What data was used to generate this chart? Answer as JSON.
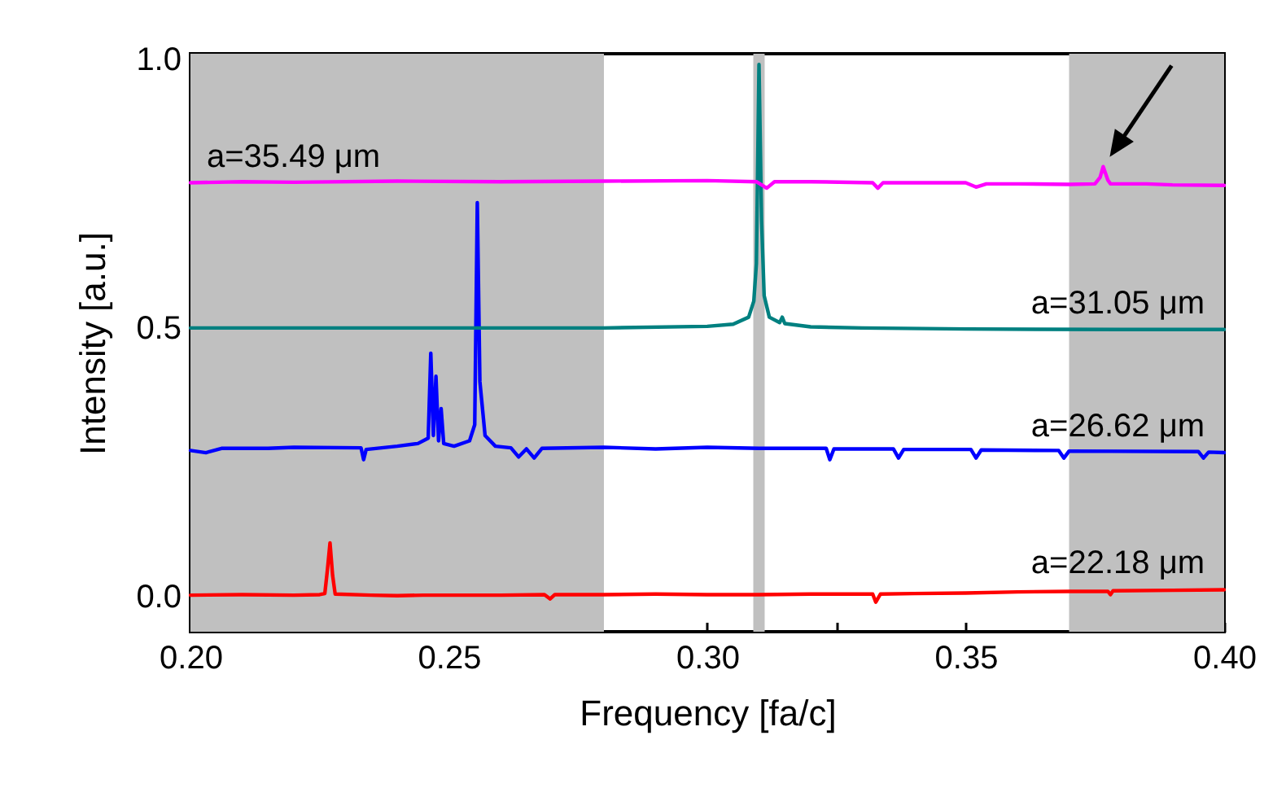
{
  "chart_data": {
    "type": "line",
    "xlabel": "Frequency [fa/c]",
    "ylabel": "Intensity [a.u.]",
    "xlim": [
      0.2,
      0.4
    ],
    "ylim": [
      -0.065,
      1.01
    ],
    "xticks": [
      {
        "value": 0.2,
        "label": "0.20"
      },
      {
        "value": 0.225,
        "label": null
      },
      0.25,
      {
        "value": 0.275,
        "label": null
      },
      {
        "value": 0.3,
        "label": "0.30"
      },
      {
        "value": 0.325,
        "label": null
      },
      0.35,
      {
        "value": 0.375,
        "label": null
      },
      {
        "value": 0.4,
        "label": "0.40"
      }
    ],
    "yticks": [
      {
        "value": 0,
        "label": "0.0"
      },
      {
        "value": 0.25,
        "label": null
      },
      {
        "value": 0.5,
        "label": "0.5"
      },
      {
        "value": 0.75,
        "label": null
      },
      {
        "value": 1,
        "label": "1.0"
      }
    ],
    "grid": false,
    "marker": "none",
    "line_style": "solid",
    "bands": [
      {
        "axis": "x",
        "from": 0.2,
        "to": 0.28,
        "color": "#c0c0c0"
      },
      {
        "axis": "x",
        "from": 0.3089,
        "to": 0.3111,
        "color": "#c0c0c0"
      },
      {
        "axis": "x",
        "from": 0.37,
        "to": 0.4,
        "color": "#c0c0c0"
      }
    ],
    "series": [
      {
        "name": "a=22.18 μm",
        "color": "#ff0000",
        "x": [
          0.2,
          0.21,
          0.22,
          0.225,
          0.226,
          0.2265,
          0.227,
          0.2275,
          0.228,
          0.235,
          0.24,
          0.245,
          0.25,
          0.26,
          0.2685,
          0.2696,
          0.2705,
          0.28,
          0.29,
          0.3,
          0.31,
          0.32,
          0.332,
          0.3326,
          0.3335,
          0.34,
          0.35,
          0.36,
          0.37,
          0.3775,
          0.378,
          0.3785,
          0.39,
          0.4
        ],
        "values": [
          0.003,
          0.004,
          0.003,
          0.004,
          0.006,
          0.05,
          0.1,
          0.04,
          0.005,
          0.003,
          0.002,
          0.003,
          0.003,
          0.003,
          0.004,
          -0.004,
          0.004,
          0.004,
          0.005,
          0.004,
          0.004,
          0.005,
          0.005,
          -0.01,
          0.005,
          0.006,
          0.007,
          0.009,
          0.01,
          0.01,
          0.004,
          0.011,
          0.012,
          0.013
        ]
      },
      {
        "name": "a=26.62 μm",
        "color": "#0000ff",
        "x": [
          0.2,
          0.203,
          0.206,
          0.215,
          0.22,
          0.233,
          0.2335,
          0.234,
          0.24,
          0.244,
          0.246,
          0.2465,
          0.247,
          0.2475,
          0.248,
          0.2485,
          0.249,
          0.251,
          0.254,
          0.255,
          0.2555,
          0.256,
          0.257,
          0.259,
          0.262,
          0.2635,
          0.265,
          0.2665,
          0.268,
          0.28,
          0.29,
          0.3,
          0.31,
          0.323,
          0.3237,
          0.3245,
          0.336,
          0.337,
          0.338,
          0.351,
          0.352,
          0.353,
          0.368,
          0.369,
          0.37,
          0.395,
          0.396,
          0.397,
          0.4
        ],
        "values": [
          0.272,
          0.268,
          0.276,
          0.276,
          0.278,
          0.277,
          0.255,
          0.274,
          0.28,
          0.285,
          0.295,
          0.453,
          0.3,
          0.41,
          0.29,
          0.35,
          0.285,
          0.28,
          0.29,
          0.32,
          0.733,
          0.4,
          0.3,
          0.28,
          0.277,
          0.26,
          0.275,
          0.258,
          0.276,
          0.278,
          0.275,
          0.278,
          0.276,
          0.276,
          0.255,
          0.275,
          0.275,
          0.258,
          0.274,
          0.274,
          0.258,
          0.273,
          0.272,
          0.258,
          0.271,
          0.27,
          0.258,
          0.269,
          0.268
        ]
      },
      {
        "name": "a=31.05 μm",
        "color": "#008080",
        "x": [
          0.2,
          0.25,
          0.28,
          0.3,
          0.305,
          0.308,
          0.309,
          0.3095,
          0.31,
          0.3105,
          0.311,
          0.312,
          0.314,
          0.3145,
          0.315,
          0.32,
          0.33,
          0.35,
          0.38,
          0.4
        ],
        "values": [
          0.5,
          0.5,
          0.5,
          0.503,
          0.507,
          0.52,
          0.55,
          0.62,
          0.99,
          0.7,
          0.56,
          0.52,
          0.51,
          0.52,
          0.508,
          0.502,
          0.5,
          0.498,
          0.497,
          0.497
        ]
      },
      {
        "name": "a=35.49 μm",
        "color": "#ff00ff",
        "x": [
          0.2,
          0.21,
          0.22,
          0.24,
          0.26,
          0.28,
          0.3,
          0.3095,
          0.3115,
          0.313,
          0.32,
          0.332,
          0.333,
          0.334,
          0.35,
          0.352,
          0.354,
          0.36,
          0.37,
          0.375,
          0.376,
          0.3766,
          0.3775,
          0.378,
          0.385,
          0.39,
          0.4
        ],
        "values": [
          0.77,
          0.772,
          0.771,
          0.773,
          0.772,
          0.773,
          0.774,
          0.772,
          0.76,
          0.772,
          0.772,
          0.77,
          0.76,
          0.77,
          0.77,
          0.762,
          0.768,
          0.768,
          0.767,
          0.768,
          0.78,
          0.8,
          0.775,
          0.768,
          0.768,
          0.766,
          0.765
        ]
      }
    ]
  }
}
